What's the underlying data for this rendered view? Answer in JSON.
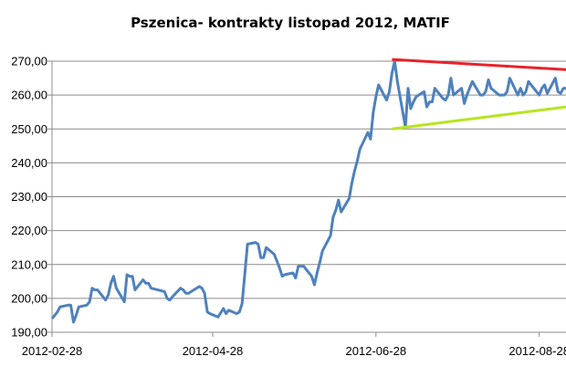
{
  "chart_data": {
    "type": "line",
    "title": "Pszenica- kontrakty listopad 2012, MATIF",
    "xlabel": "",
    "ylabel": "",
    "ylim": [
      190,
      270
    ],
    "yticks": [
      190,
      200,
      210,
      220,
      230,
      240,
      250,
      260,
      270
    ],
    "ytick_labels": [
      "190,00",
      "200,00",
      "210,00",
      "220,00",
      "230,00",
      "240,00",
      "250,00",
      "260,00",
      "270,00"
    ],
    "xlim": [
      "2012-02-28",
      "2012-09-07"
    ],
    "xtick_labels": [
      "2012-02-28",
      "2012-04-28",
      "2012-06-28",
      "2012-08-28"
    ],
    "grid": true,
    "legend": "none",
    "colors": {
      "series": "#4f81bd",
      "resistance": "#e8222a",
      "support": "#b5e61d"
    },
    "series": [
      {
        "x": [
          "2012-02-28",
          "2012-03-01",
          "2012-03-02",
          "2012-03-05",
          "2012-03-06",
          "2012-03-07",
          "2012-03-08",
          "2012-03-09",
          "2012-03-12",
          "2012-03-13",
          "2012-03-14",
          "2012-03-15",
          "2012-03-16",
          "2012-03-19",
          "2012-03-20",
          "2012-03-21",
          "2012-03-22",
          "2012-03-23",
          "2012-03-26",
          "2012-03-27",
          "2012-03-28",
          "2012-03-29",
          "2012-03-30",
          "2012-04-02",
          "2012-04-03",
          "2012-04-04",
          "2012-04-05",
          "2012-04-10",
          "2012-04-11",
          "2012-04-12",
          "2012-04-13",
          "2012-04-16",
          "2012-04-17",
          "2012-04-18",
          "2012-04-19",
          "2012-04-20",
          "2012-04-23",
          "2012-04-24",
          "2012-04-25",
          "2012-04-26",
          "2012-04-27",
          "2012-04-30",
          "2012-05-02",
          "2012-05-03",
          "2012-05-04",
          "2012-05-07",
          "2012-05-08",
          "2012-05-09",
          "2012-05-10",
          "2012-05-11",
          "2012-05-14",
          "2012-05-15",
          "2012-05-16",
          "2012-05-17",
          "2012-05-18",
          "2012-05-21",
          "2012-05-22",
          "2012-05-23",
          "2012-05-24",
          "2012-05-25",
          "2012-05-28",
          "2012-05-29",
          "2012-05-30",
          "2012-05-31",
          "2012-06-01",
          "2012-06-04",
          "2012-06-05",
          "2012-06-06",
          "2012-06-07",
          "2012-06-08",
          "2012-06-11",
          "2012-06-12",
          "2012-06-13",
          "2012-06-14",
          "2012-06-15",
          "2012-06-18",
          "2012-06-19",
          "2012-06-20",
          "2012-06-21",
          "2012-06-22",
          "2012-06-25",
          "2012-06-26",
          "2012-06-27",
          "2012-06-28",
          "2012-06-29",
          "2012-07-02",
          "2012-07-03",
          "2012-07-04",
          "2012-07-05",
          "2012-07-06",
          "2012-07-09",
          "2012-07-10",
          "2012-07-11",
          "2012-07-12",
          "2012-07-13",
          "2012-07-16",
          "2012-07-17",
          "2012-07-18",
          "2012-07-19",
          "2012-07-20",
          "2012-07-23",
          "2012-07-24",
          "2012-07-25",
          "2012-07-26",
          "2012-07-27",
          "2012-07-30",
          "2012-07-31",
          "2012-08-01",
          "2012-08-02",
          "2012-08-03",
          "2012-08-06",
          "2012-08-07",
          "2012-08-08",
          "2012-08-09",
          "2012-08-10",
          "2012-08-13",
          "2012-08-14",
          "2012-08-15",
          "2012-08-16",
          "2012-08-17",
          "2012-08-20",
          "2012-08-21",
          "2012-08-22",
          "2012-08-23",
          "2012-08-24",
          "2012-08-27",
          "2012-08-28",
          "2012-08-29",
          "2012-08-30",
          "2012-08-31",
          "2012-09-03",
          "2012-09-04",
          "2012-09-05",
          "2012-09-06",
          "2012-09-07"
        ],
        "y": [
          194,
          196,
          197.5,
          198,
          198,
          193,
          195,
          197.5,
          198,
          199,
          203,
          202.5,
          202.5,
          199.5,
          201,
          204.5,
          206.5,
          203,
          199,
          207,
          206.5,
          206.5,
          202.5,
          205.5,
          204.5,
          204.5,
          203,
          202,
          200,
          199.5,
          200.5,
          203,
          202.5,
          201.5,
          201.5,
          202,
          203.5,
          203,
          201.5,
          196,
          195.5,
          194.5,
          197,
          195.5,
          196.5,
          195.5,
          196,
          198.5,
          207,
          216,
          216.5,
          216,
          212,
          212,
          215,
          213,
          211,
          209,
          206.5,
          207,
          207.5,
          206,
          209.5,
          209.5,
          209.5,
          206.5,
          204,
          207.5,
          210.5,
          214,
          218.5,
          224,
          226,
          229,
          225.5,
          229.5,
          234,
          237.5,
          240.5,
          244,
          249,
          247,
          255,
          259.5,
          263,
          258.5,
          261,
          266.5,
          270,
          264,
          250.5,
          262,
          256,
          258,
          259.5,
          261,
          256.5,
          258,
          258,
          262,
          259,
          258.5,
          260,
          265,
          260,
          262,
          257.5,
          260,
          262,
          264,
          260,
          260,
          261,
          264.5,
          262,
          260,
          260,
          260,
          261,
          265,
          260,
          262,
          260,
          261,
          264,
          261,
          260,
          262,
          263,
          260.5,
          265,
          261,
          260.5,
          262,
          262
        ]
      }
    ],
    "trendlines": [
      {
        "name": "resistance",
        "x": [
          "2012-07-04",
          "2012-09-07"
        ],
        "y": [
          270.5,
          267.5
        ]
      },
      {
        "name": "support",
        "x": [
          "2012-07-04",
          "2012-09-07"
        ],
        "y": [
          250,
          256.5
        ]
      }
    ]
  }
}
